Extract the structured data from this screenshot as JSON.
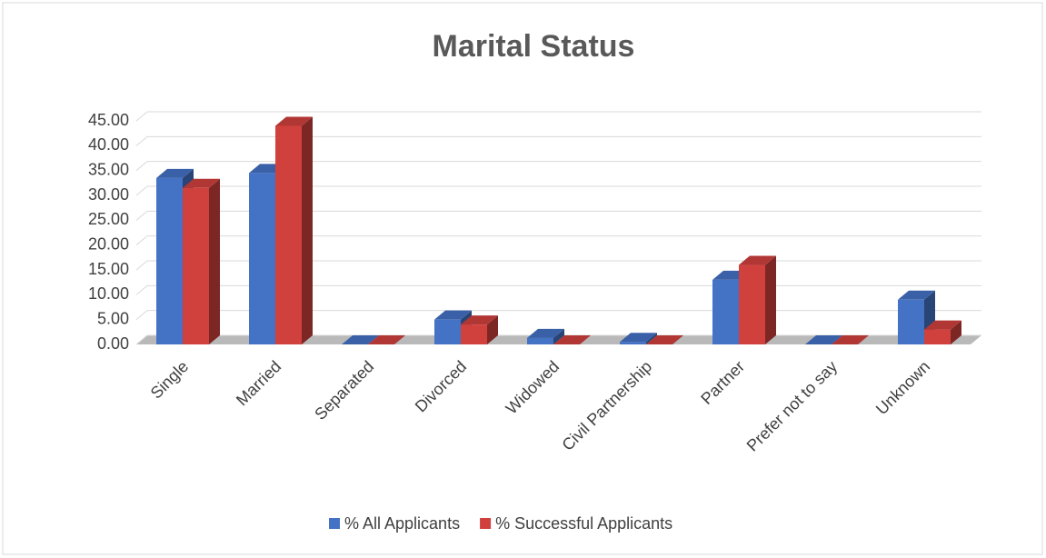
{
  "chart_data": {
    "type": "bar3d",
    "title": "Marital Status",
    "categories": [
      "Single",
      "Married",
      "Separated",
      "Divorced",
      "Widowed",
      "Civil Partnership",
      "Partner",
      "Prefer not to say",
      "Unknown"
    ],
    "series": [
      {
        "name": "% All Applicants",
        "color": "#4472c4",
        "values": [
          33.5,
          34.5,
          0,
          5,
          1.3,
          0.5,
          13,
          0,
          9
        ]
      },
      {
        "name": "% Successful Applicants",
        "color": "#d0413d",
        "values": [
          31.5,
          44,
          0,
          4,
          0,
          0,
          16,
          0,
          3
        ]
      }
    ],
    "ylim": [
      0,
      45
    ],
    "yticks": [
      {
        "value": 0,
        "label": "0.00"
      },
      {
        "value": 5,
        "label": "5.00"
      },
      {
        "value": 10,
        "label": "10.00"
      },
      {
        "value": 15,
        "label": "15.00"
      },
      {
        "value": 20,
        "label": "20.00"
      },
      {
        "value": 25,
        "label": "25.00"
      },
      {
        "value": 30,
        "label": "30.00"
      },
      {
        "value": 35,
        "label": "35.00"
      },
      {
        "value": 40,
        "label": "40.00"
      },
      {
        "value": 45,
        "label": "45.00"
      }
    ],
    "grid": true,
    "legend": "bottom"
  }
}
